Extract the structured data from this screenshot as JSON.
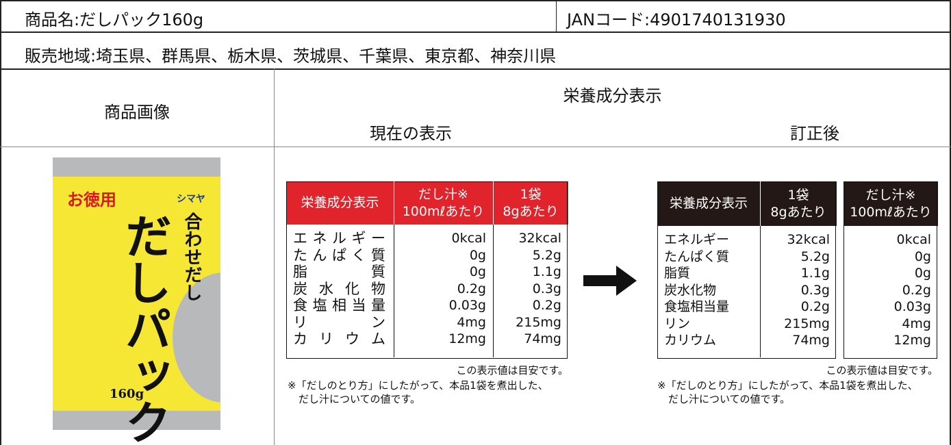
{
  "header": {
    "product_name": "商品名:だしパック160g",
    "jan_code": "JANコード:4901740131930",
    "region": "販売地域:埼玉県、群馬県、栃木県、茨城県、千葉県、東京都、神奈川県"
  },
  "columns": {
    "image": "商品画像",
    "nutrition": "栄養成分表示"
  },
  "product_image": {
    "brand": "シマヤ",
    "badge": "お徳用",
    "subtitle": "合わせだし",
    "name": "だしパック",
    "weight": "160g"
  },
  "current": {
    "label": "現在の表示",
    "headers": [
      [
        "栄養成分表示"
      ],
      [
        "だし汁※",
        "100mℓあたり"
      ],
      [
        "1袋",
        "8gあたり"
      ]
    ],
    "rows": [
      [
        "エネルギー",
        "0kcal",
        "32kcal"
      ],
      [
        "たんぱく質",
        "0g",
        "5.2g"
      ],
      [
        "脂質",
        "0g",
        "1.1g"
      ],
      [
        "炭水化物",
        "0.2g",
        "0.3g"
      ],
      [
        "食塩相当量",
        "0.03g",
        "0.2g"
      ],
      [
        "リン",
        "4mg",
        "215mg"
      ],
      [
        "カリウム",
        "12mg",
        "74mg"
      ]
    ],
    "notes": [
      "この表示値は目安です。",
      "※「だしのとり方」にしたがって、本品1袋を煮出した、",
      "だし汁についての値です。"
    ]
  },
  "corrected": {
    "label": "訂正後",
    "headers": [
      [
        "栄養成分表示"
      ],
      [
        "1袋",
        "8gあたり"
      ],
      [
        "だし汁※",
        "100mℓあたり"
      ]
    ],
    "rows": [
      [
        "エネルギー",
        "32kcal",
        "0kcal"
      ],
      [
        "たんぱく質",
        "5.2g",
        "0g"
      ],
      [
        "脂質",
        "1.1g",
        "0g"
      ],
      [
        "炭水化物",
        "0.3g",
        "0.2g"
      ],
      [
        "食塩相当量",
        "0.2g",
        "0.03g"
      ],
      [
        "リン",
        "215mg",
        "4mg"
      ],
      [
        "カリウム",
        "74mg",
        "12mg"
      ]
    ],
    "notes": [
      "この表示値は目安です。",
      "※「だしのとり方」にしたがって、本品1袋を煮出した、",
      "だし汁についての値です。"
    ]
  }
}
